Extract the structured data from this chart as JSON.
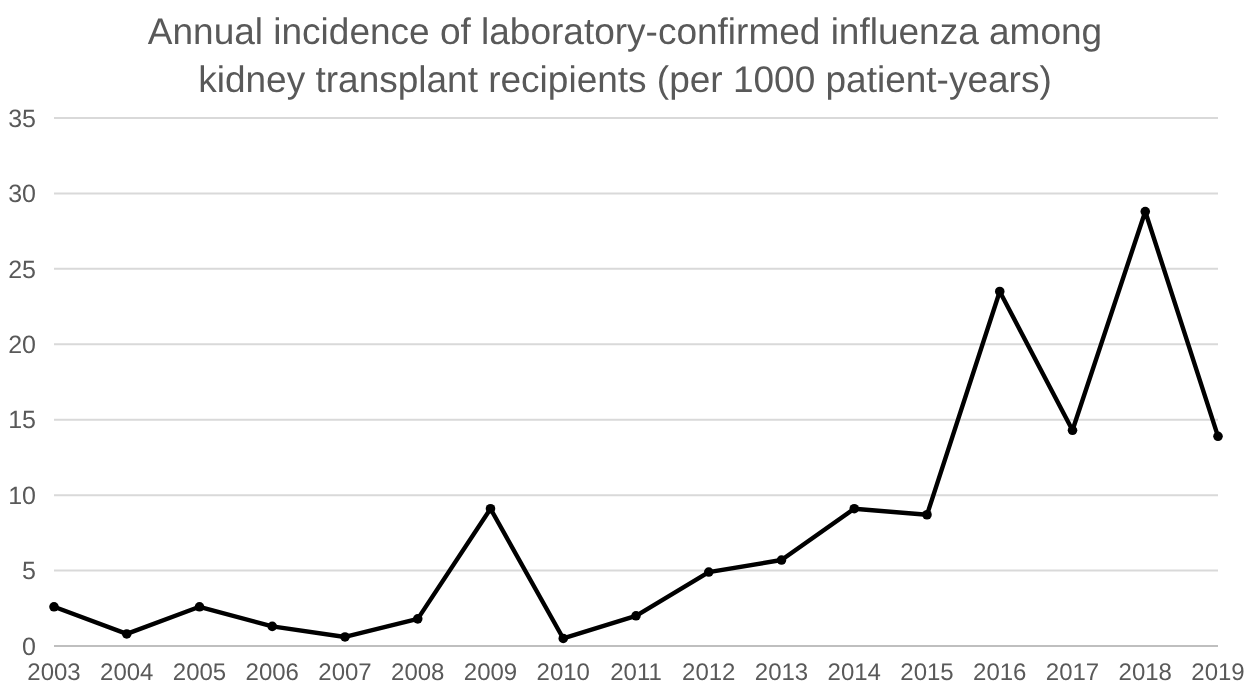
{
  "chart_data": {
    "type": "line",
    "title": "Annual incidence of laboratory-confirmed influenza among kidney transplant recipients (per 1000 patient-years)",
    "categories": [
      "2003",
      "2004",
      "2005",
      "2006",
      "2007",
      "2008",
      "2009",
      "2010",
      "2011",
      "2012",
      "2013",
      "2014",
      "2015",
      "2016",
      "2017",
      "2018",
      "2019"
    ],
    "series": [
      {
        "color": "#000000",
        "values": [
          2.6,
          0.8,
          2.6,
          1.3,
          0.6,
          1.8,
          9.1,
          0.5,
          2.0,
          4.9,
          5.7,
          9.1,
          8.7,
          23.5,
          14.3,
          28.8,
          13.9
        ]
      }
    ],
    "ylim": [
      0,
      35
    ],
    "yticks": [
      0,
      5,
      10,
      15,
      20,
      25,
      30,
      35
    ],
    "grid": "y",
    "marker": "circle",
    "line_style": "solid"
  }
}
